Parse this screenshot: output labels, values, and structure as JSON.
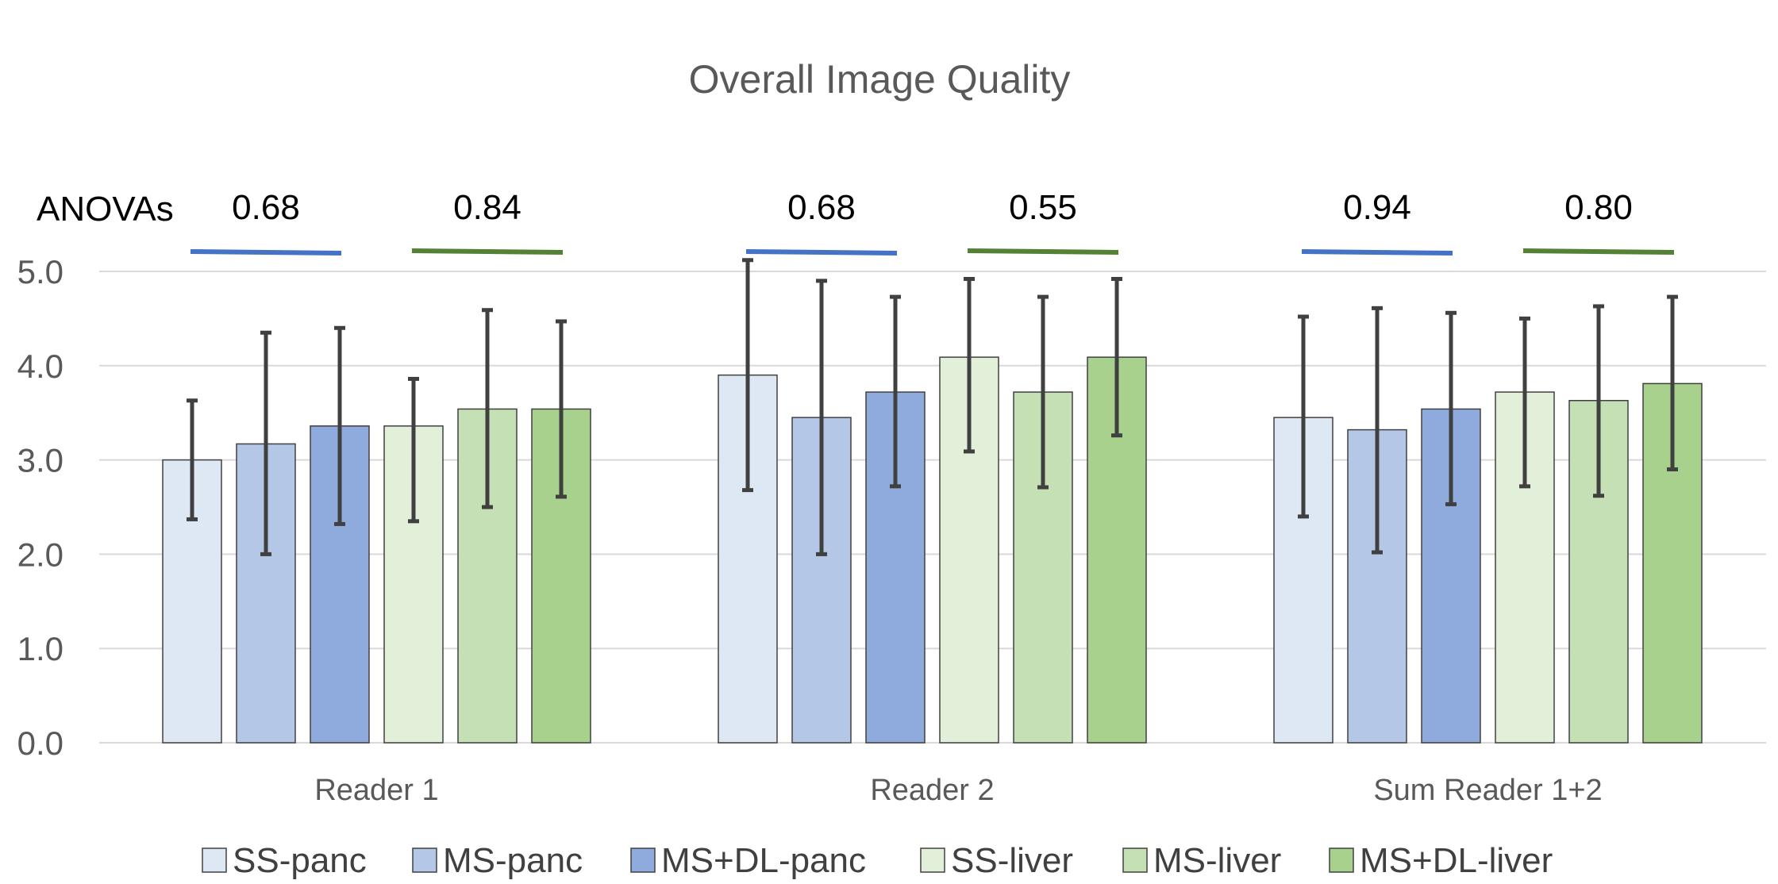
{
  "chart_data": {
    "type": "bar",
    "title": "Overall Image Quality",
    "xlabel": "",
    "ylabel": "",
    "ylim": [
      0,
      5
    ],
    "yticks": [
      "0.0",
      "1.0",
      "2.0",
      "3.0",
      "4.0",
      "5.0"
    ],
    "grid": true,
    "legend_position": "bottom",
    "categories": [
      "Reader 1",
      "Reader 2",
      "Sum Reader 1+2"
    ],
    "series": [
      {
        "name": "SS-panc",
        "color": "#dee8f5",
        "values": [
          3.0,
          3.9,
          3.45
        ],
        "err_low": [
          2.37,
          2.68,
          2.4
        ],
        "err_high": [
          3.63,
          5.12,
          4.52
        ]
      },
      {
        "name": "MS-panc",
        "color": "#b4c7e7",
        "values": [
          3.17,
          3.45,
          3.32
        ],
        "err_low": [
          2.0,
          2.0,
          2.02
        ],
        "err_high": [
          4.35,
          4.9,
          4.61
        ]
      },
      {
        "name": "MS+DL-panc",
        "color": "#8faadc",
        "values": [
          3.36,
          3.72,
          3.54
        ],
        "err_low": [
          2.32,
          2.72,
          2.53
        ],
        "err_high": [
          4.4,
          4.73,
          4.56
        ]
      },
      {
        "name": "SS-liver",
        "color": "#e2f0d9",
        "values": [
          3.36,
          4.09,
          3.72
        ],
        "err_low": [
          2.35,
          3.09,
          2.72
        ],
        "err_high": [
          3.86,
          4.92,
          4.5
        ]
      },
      {
        "name": "MS-liver",
        "color": "#c5e0b4",
        "values": [
          3.54,
          3.72,
          3.63
        ],
        "err_low": [
          2.5,
          2.71,
          2.62
        ],
        "err_high": [
          4.59,
          4.73,
          4.63
        ]
      },
      {
        "name": "MS+DL-liver",
        "color": "#a9d18e",
        "values": [
          3.54,
          4.09,
          3.81
        ],
        "err_low": [
          2.61,
          3.26,
          2.9
        ],
        "err_high": [
          4.47,
          4.92,
          4.73
        ]
      }
    ],
    "annotations": {
      "label": "ANOVAs",
      "pairs": [
        {
          "category": "Reader 1",
          "panc": "0.68",
          "liver": "0.84"
        },
        {
          "category": "Reader 2",
          "panc": "0.68",
          "liver": "0.55"
        },
        {
          "category": "Sum Reader 1+2",
          "panc": "0.94",
          "liver": "0.80"
        }
      ],
      "panc_color": "#4472c4",
      "liver_color": "#548235"
    },
    "colors": {
      "grid": "#d9d9d9",
      "error_bar": "#404040",
      "bar_border": "#404040"
    }
  }
}
